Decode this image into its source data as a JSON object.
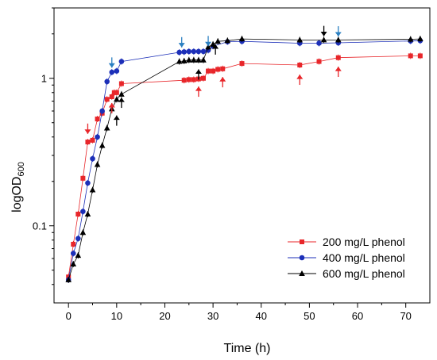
{
  "chart_data": {
    "type": "scatter",
    "title": "",
    "xlabel": "Time (h)",
    "ylabel_main": "logOD",
    "ylabel_sub": "600",
    "xlim": [
      -3,
      75
    ],
    "ylim": [
      0.03,
      3.0
    ],
    "yscale": "log",
    "x_ticks": [
      0,
      10,
      20,
      30,
      40,
      50,
      60,
      70
    ],
    "x_tick_labels": [
      "0",
      "10",
      "20",
      "30",
      "40",
      "50",
      "60",
      "70"
    ],
    "y_ticks": [
      0.1,
      1
    ],
    "y_tick_labels": [
      "0.1",
      "1"
    ],
    "grid": false,
    "legend_position": "bottom-right",
    "series": [
      {
        "name": "200 mg/L phenol",
        "color": "#e8262a",
        "marker": "square",
        "x": [
          0,
          1,
          2,
          3,
          4,
          5,
          6,
          7,
          8,
          9,
          9.5,
          10,
          11,
          24,
          25,
          26,
          27,
          28,
          29,
          30,
          31,
          32,
          36,
          48,
          52,
          56,
          71,
          73
        ],
        "y": [
          0.045,
          0.075,
          0.12,
          0.21,
          0.37,
          0.38,
          0.53,
          0.58,
          0.72,
          0.75,
          0.8,
          0.8,
          0.92,
          0.97,
          0.98,
          0.98,
          0.99,
          1.0,
          1.12,
          1.12,
          1.15,
          1.16,
          1.26,
          1.23,
          1.3,
          1.38,
          1.42,
          1.42
        ]
      },
      {
        "name": "400 mg/L phenol",
        "color": "#1c2fb8",
        "marker": "circle",
        "x": [
          0,
          1,
          2,
          3,
          4,
          5,
          6,
          7,
          8,
          9,
          10,
          11,
          23,
          24,
          25,
          26,
          27,
          28,
          29,
          30,
          33,
          36,
          48,
          52,
          56,
          71,
          73
        ],
        "y": [
          0.043,
          0.065,
          0.082,
          0.125,
          0.195,
          0.285,
          0.4,
          0.6,
          0.95,
          1.1,
          1.12,
          1.3,
          1.5,
          1.51,
          1.52,
          1.52,
          1.52,
          1.52,
          1.55,
          1.65,
          1.77,
          1.78,
          1.73,
          1.73,
          1.74,
          1.79,
          1.8
        ]
      },
      {
        "name": "600 mg/L phenol",
        "color": "#000000",
        "marker": "triangle",
        "x": [
          0,
          1,
          2,
          3,
          4,
          5,
          6,
          7,
          8,
          9,
          10,
          11,
          23,
          24,
          25,
          26,
          27,
          28,
          29,
          30,
          31,
          33,
          36,
          48,
          53,
          56,
          71,
          73
        ],
        "y": [
          0.043,
          0.055,
          0.063,
          0.09,
          0.12,
          0.175,
          0.26,
          0.35,
          0.46,
          0.62,
          0.72,
          0.78,
          1.3,
          1.31,
          1.33,
          1.33,
          1.33,
          1.33,
          1.63,
          1.7,
          1.78,
          1.8,
          1.85,
          1.82,
          1.82,
          1.82,
          1.84,
          1.85
        ]
      }
    ]
  }
}
